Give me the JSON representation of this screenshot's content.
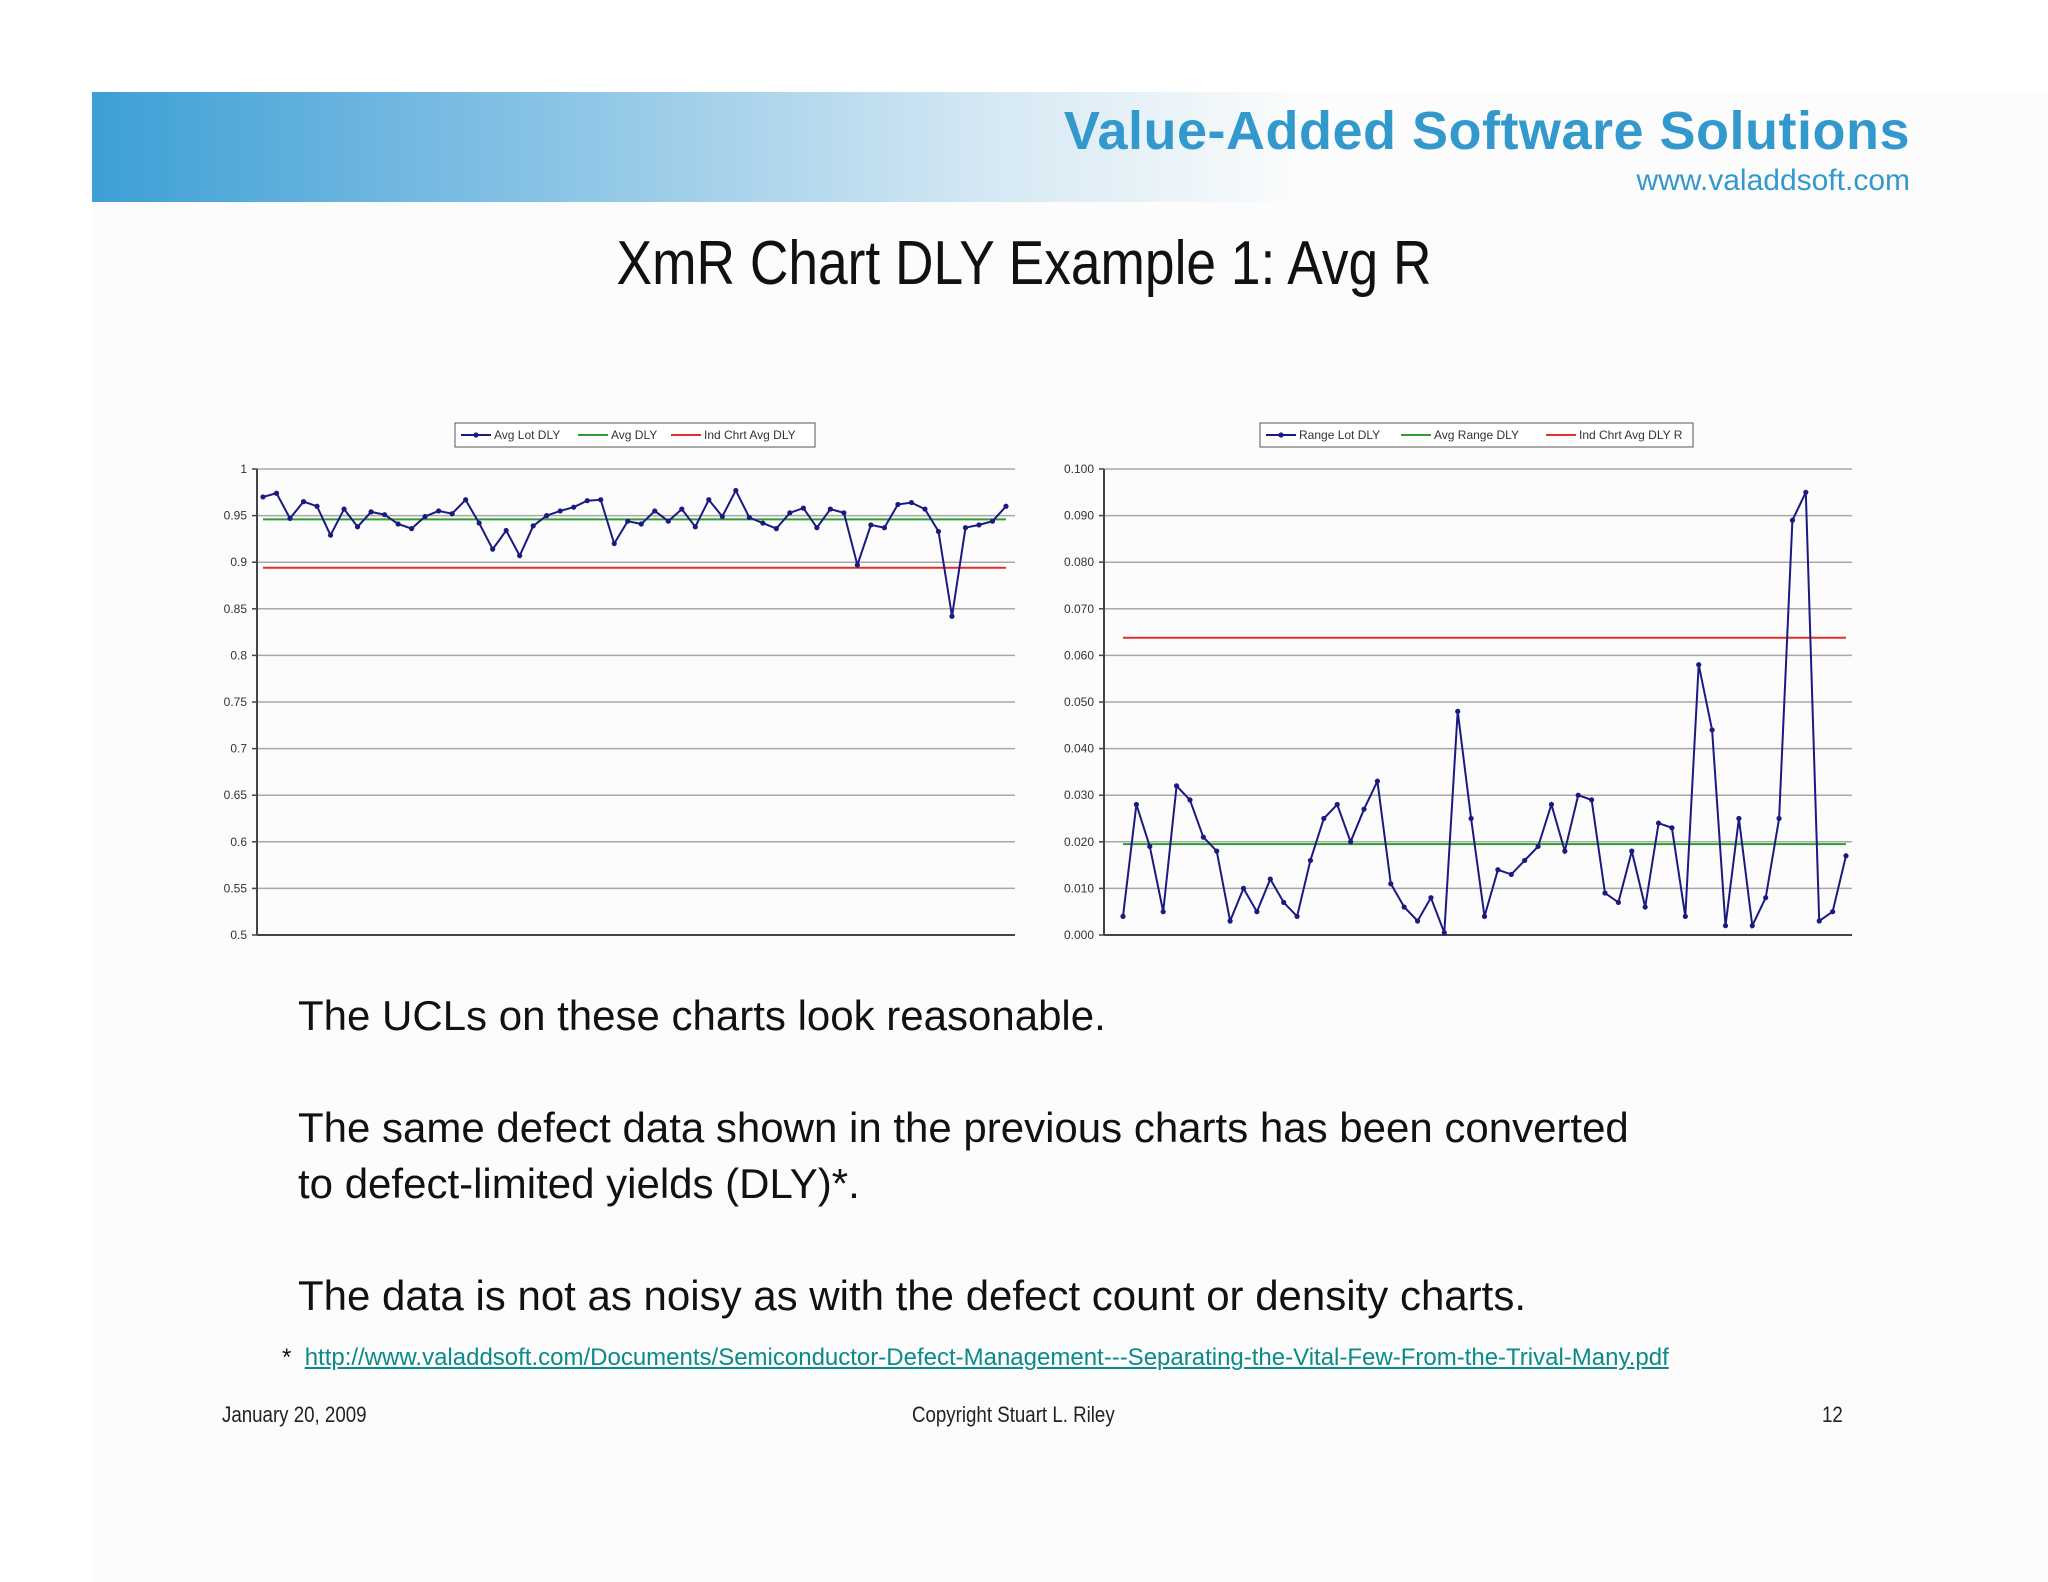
{
  "header": {
    "brand": "Value-Added Software Solutions",
    "url": "www.valaddsoft.com",
    "title": "XmR Chart DLY Example 1:  Avg R"
  },
  "body": {
    "line1": "The UCLs on these charts look reasonable.",
    "line2a": "The same defect data shown in the previous charts has been converted",
    "line2b": "to defect-limited yields (DLY)*.",
    "line3": "The data is not as noisy as with the defect count or density charts."
  },
  "footnote": {
    "marker": "*",
    "link": "http://www.valaddsoft.com/Documents/Semiconductor-Defect-Management---Separating-the-Vital-Few-From-the-Trival-Many.pdf"
  },
  "footer": {
    "date": "January 20, 2009",
    "copyright": "Copyright    Stuart L. Riley",
    "page": "12"
  },
  "colors": {
    "series": "#1a1a80",
    "avg": "#2e9e2e",
    "ucl": "#e03030",
    "brand": "#3399cc"
  },
  "chart_data": [
    {
      "type": "line",
      "ylim": [
        0.5,
        1
      ],
      "yticks": [
        "1",
        "0.95",
        "0.9",
        "0.85",
        "0.8",
        "0.75",
        "0.7",
        "0.65",
        "0.6",
        "0.55",
        "0.5"
      ],
      "legend_position": "top",
      "grid": true,
      "series": [
        {
          "name": "Avg Lot DLY",
          "values": [
            0.97,
            0.974,
            0.947,
            0.965,
            0.96,
            0.929,
            0.957,
            0.938,
            0.954,
            0.951,
            0.941,
            0.936,
            0.949,
            0.955,
            0.952,
            0.967,
            0.942,
            0.914,
            0.934,
            0.907,
            0.939,
            0.95,
            0.955,
            0.959,
            0.966,
            0.967,
            0.92,
            0.944,
            0.941,
            0.955,
            0.944,
            0.957,
            0.938,
            0.967,
            0.949,
            0.977,
            0.948,
            0.942,
            0.936,
            0.953,
            0.958,
            0.937,
            0.957,
            0.953,
            0.897,
            0.94,
            0.937,
            0.962,
            0.964,
            0.957,
            0.933,
            0.842,
            0.937,
            0.94,
            0.944,
            0.96
          ]
        },
        {
          "name": "Avg DLY",
          "constant": 0.946
        },
        {
          "name": "Ind Chrt Avg DLY",
          "constant": 0.894
        }
      ]
    },
    {
      "type": "line",
      "ylim": [
        0,
        0.1
      ],
      "yticks": [
        "0.100",
        "0.090",
        "0.080",
        "0.070",
        "0.060",
        "0.050",
        "0.040",
        "0.030",
        "0.020",
        "0.010",
        "0.000"
      ],
      "legend_position": "top",
      "grid": true,
      "series": [
        {
          "name": "Range Lot DLY",
          "values": [
            0.004,
            0.028,
            0.019,
            0.005,
            0.032,
            0.029,
            0.021,
            0.018,
            0.003,
            0.01,
            0.005,
            0.012,
            0.007,
            0.004,
            0.016,
            0.025,
            0.028,
            0.02,
            0.027,
            0.033,
            0.011,
            0.006,
            0.003,
            0.008,
            0.0005,
            0.048,
            0.025,
            0.004,
            0.014,
            0.013,
            0.016,
            0.019,
            0.028,
            0.018,
            0.03,
            0.029,
            0.009,
            0.007,
            0.018,
            0.006,
            0.024,
            0.023,
            0.004,
            0.058,
            0.044,
            0.002,
            0.025,
            0.002,
            0.008,
            0.025,
            0.089,
            0.095,
            0.003,
            0.005,
            0.017
          ]
        },
        {
          "name": "Avg Range DLY",
          "constant": 0.0195
        },
        {
          "name": "Ind Chrt Avg DLY R",
          "constant": 0.0638
        }
      ]
    }
  ]
}
